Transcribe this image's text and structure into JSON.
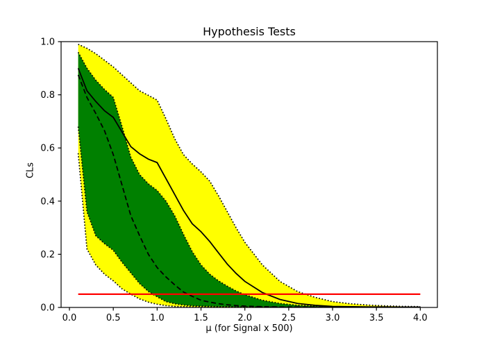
{
  "chart_data": {
    "type": "line",
    "title": "Hypothesis Tests",
    "xlabel": "μ (for Signal x 500)",
    "ylabel": "CLs",
    "xlim": [
      -0.095,
      4.195
    ],
    "ylim": [
      0.0,
      1.0
    ],
    "xticks": [
      0.0,
      0.5,
      1.0,
      1.5,
      2.0,
      2.5,
      3.0,
      3.5,
      4.0
    ],
    "xtick_labels": [
      "0.0",
      "0.5",
      "1.0",
      "1.5",
      "2.0",
      "2.5",
      "3.0",
      "3.5",
      "4.0"
    ],
    "yticks": [
      0.0,
      0.2,
      0.4,
      0.6,
      0.8,
      1.0
    ],
    "ytick_labels": [
      "0.0",
      "0.2",
      "0.4",
      "0.6",
      "0.8",
      "1.0"
    ],
    "grid": false,
    "legend_position": "none",
    "x": [
      0.1,
      0.2,
      0.3,
      0.4,
      0.5,
      0.6,
      0.7,
      0.8,
      0.9,
      1.0,
      1.1,
      1.2,
      1.3,
      1.4,
      1.5,
      1.6,
      1.7,
      1.8,
      1.9,
      2.0,
      2.2,
      2.4,
      2.6,
      2.8,
      3.0,
      3.2,
      3.4,
      3.6,
      3.8,
      4.0
    ],
    "series": [
      {
        "name": "observed_cls",
        "style": "solid",
        "color": "#000000",
        "values": [
          0.9,
          0.815,
          0.775,
          0.74,
          0.715,
          0.66,
          0.605,
          0.578,
          0.558,
          0.545,
          0.485,
          0.425,
          0.365,
          0.315,
          0.285,
          0.248,
          0.205,
          0.163,
          0.128,
          0.098,
          0.056,
          0.03,
          0.015,
          0.008,
          0.004,
          0.003,
          0.002,
          0.002,
          0.001,
          0.001
        ]
      },
      {
        "name": "expected_cls",
        "style": "dashed",
        "color": "#000000",
        "values": [
          0.875,
          0.79,
          0.73,
          0.665,
          0.575,
          0.46,
          0.345,
          0.27,
          0.2,
          0.15,
          0.115,
          0.085,
          0.058,
          0.042,
          0.027,
          0.02,
          0.014,
          0.01,
          0.007,
          0.005,
          0.003,
          0.002,
          0.002,
          0.001,
          0.001,
          0.001,
          0.001,
          0.001,
          0.001,
          0.001
        ]
      },
      {
        "name": "plus_2sigma_band_top",
        "style": "dotted",
        "color": "#000000",
        "values": [
          0.99,
          0.975,
          0.955,
          0.93,
          0.905,
          0.875,
          0.845,
          0.815,
          0.798,
          0.78,
          0.71,
          0.635,
          0.575,
          0.54,
          0.51,
          0.475,
          0.42,
          0.36,
          0.3,
          0.245,
          0.16,
          0.098,
          0.06,
          0.038,
          0.022,
          0.014,
          0.009,
          0.006,
          0.004,
          0.003
        ]
      },
      {
        "name": "plus_1sigma_band_top",
        "style": "dotted",
        "color": "#000000",
        "values": [
          0.96,
          0.9,
          0.855,
          0.82,
          0.79,
          0.68,
          0.565,
          0.5,
          0.465,
          0.44,
          0.4,
          0.345,
          0.275,
          0.21,
          0.16,
          0.125,
          0.1,
          0.08,
          0.062,
          0.048,
          0.027,
          0.015,
          0.008,
          0.005,
          0.003,
          0.002,
          0.002,
          0.001,
          0.001,
          0.001
        ]
      },
      {
        "name": "minus_1sigma_band_bottom",
        "style": "dotted",
        "color": "#000000",
        "values": [
          0.68,
          0.36,
          0.27,
          0.24,
          0.215,
          0.17,
          0.13,
          0.09,
          0.06,
          0.04,
          0.022,
          0.014,
          0.009,
          0.006,
          0.005,
          0.004,
          0.003,
          0.003,
          0.002,
          0.002,
          0.002,
          0.001,
          0.001,
          0.001,
          0.001,
          0.001,
          0.001,
          0.001,
          0.001,
          0.001
        ]
      },
      {
        "name": "minus_2sigma_band_bottom",
        "style": "dotted",
        "color": "#000000",
        "values": [
          0.58,
          0.22,
          0.16,
          0.125,
          0.1,
          0.07,
          0.05,
          0.032,
          0.02,
          0.012,
          0.007,
          0.004,
          0.003,
          0.002,
          0.002,
          0.001,
          0.001,
          0.001,
          0.001,
          0.001,
          0.001,
          0.001,
          0.001,
          0.001,
          0.001,
          0.001,
          0.001,
          0.001,
          0.001,
          0.001
        ]
      }
    ],
    "bands": [
      {
        "name": "two_sigma_band",
        "color": "#ffff00",
        "top": "plus_2sigma_band_top",
        "bottom": "minus_2sigma_band_bottom"
      },
      {
        "name": "one_sigma_band",
        "color": "#008000",
        "top": "plus_1sigma_band_top",
        "bottom": "minus_1sigma_band_bottom"
      }
    ],
    "threshold_line": {
      "name": "alpha_threshold",
      "y": 0.05,
      "x_start": 0.1,
      "x_end": 4.0,
      "color": "#ff0000"
    }
  }
}
